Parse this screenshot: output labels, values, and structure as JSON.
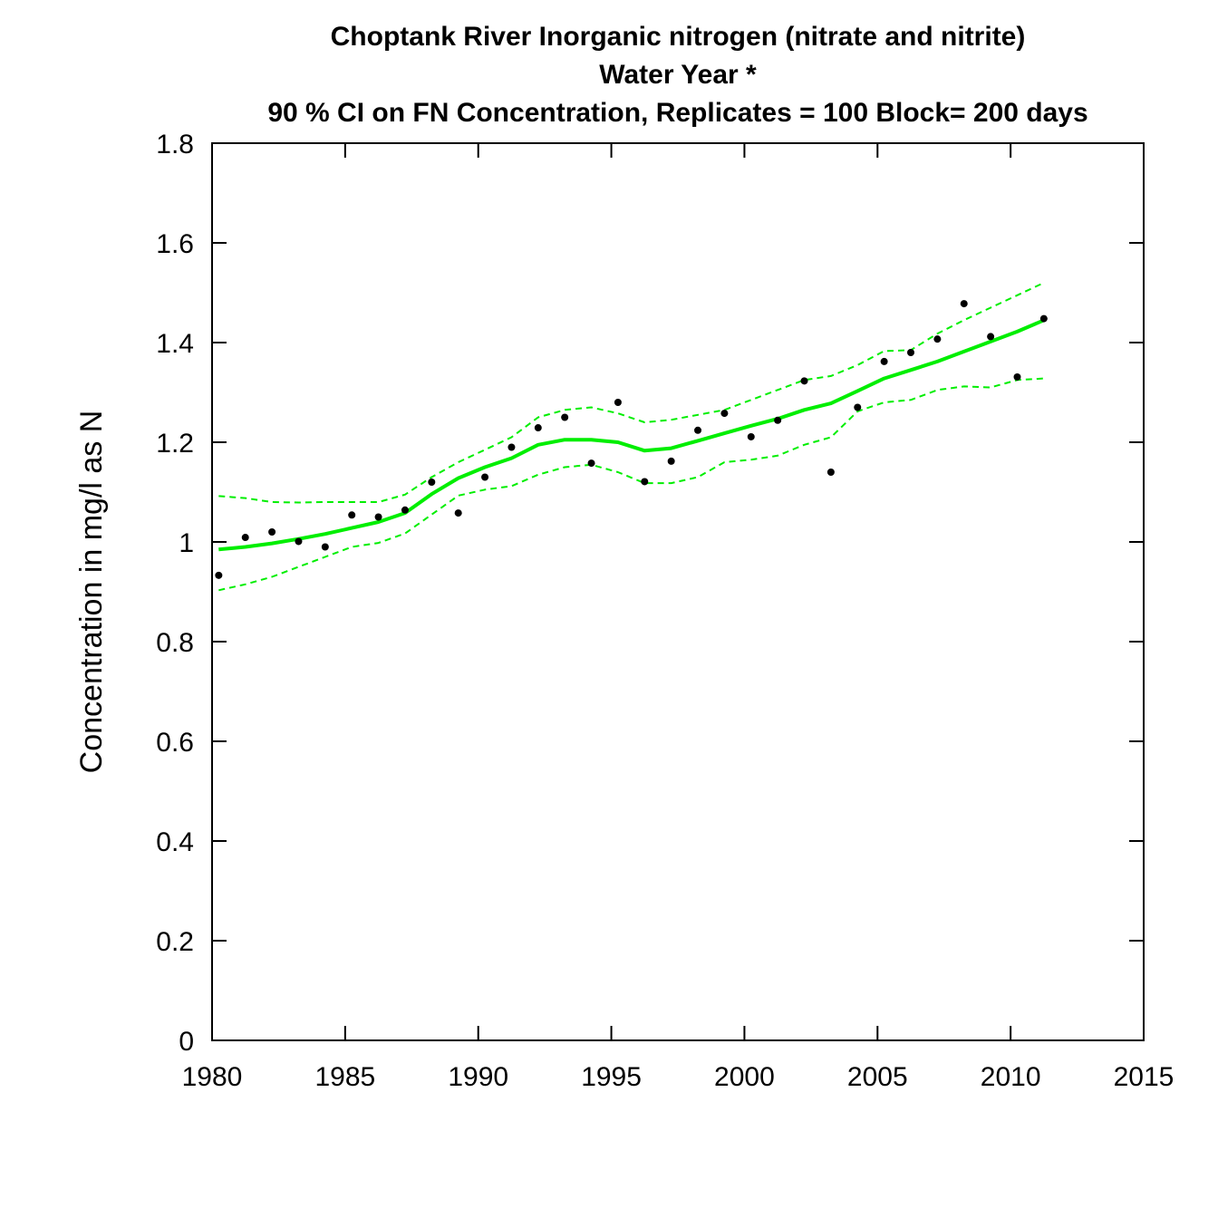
{
  "chart_data": {
    "type": "line",
    "title": [
      "Choptank River   Inorganic nitrogen (nitrate and nitrite)",
      "Water Year *",
      "90 % CI on FN Concentration, Replicates = 100 Block= 200 days"
    ],
    "xlabel": "",
    "ylabel": "Concentration in mg/l as N",
    "xlim": [
      1980,
      2015
    ],
    "ylim": [
      0,
      1.8
    ],
    "xticks": [
      "1980",
      "1985",
      "1990",
      "1995",
      "2000",
      "2005",
      "2010",
      "2015"
    ],
    "yticks": [
      "0",
      "0.2",
      "0.4",
      "0.6",
      "0.8",
      "1",
      "1.2",
      "1.4",
      "1.6",
      "1.8"
    ],
    "grid": false,
    "legend": "none",
    "colors": {
      "estimate": "#00ee00",
      "ci": "#00ee00",
      "points": "#000000"
    },
    "x": [
      1980.25,
      1981.25,
      1982.25,
      1983.25,
      1984.25,
      1985.25,
      1986.25,
      1987.25,
      1988.25,
      1989.25,
      1990.25,
      1991.25,
      1992.25,
      1993.25,
      1994.25,
      1995.25,
      1996.25,
      1997.25,
      1998.25,
      1999.25,
      2000.25,
      2001.25,
      2002.25,
      2003.25,
      2004.25,
      2005.25,
      2006.25,
      2007.25,
      2008.25,
      2009.25,
      2010.25,
      2011.25
    ],
    "series": [
      {
        "role": "observed-annual-concentration",
        "marker": "dot",
        "values": [
          0.933,
          1.009,
          1.02,
          1.001,
          0.99,
          1.054,
          1.05,
          1.064,
          1.12,
          1.058,
          1.13,
          1.19,
          1.229,
          1.25,
          1.158,
          1.28,
          1.121,
          1.162,
          1.224,
          1.258,
          1.211,
          1.244,
          1.323,
          1.14,
          1.27,
          1.362,
          1.38,
          1.407,
          1.478,
          1.412,
          1.331,
          1.448
        ]
      },
      {
        "role": "flow-normalized-concentration",
        "style": "solid",
        "values": [
          0.985,
          0.99,
          0.997,
          1.006,
          1.016,
          1.028,
          1.04,
          1.058,
          1.096,
          1.128,
          1.15,
          1.168,
          1.195,
          1.205,
          1.205,
          1.2,
          1.183,
          1.188,
          1.203,
          1.218,
          1.233,
          1.247,
          1.265,
          1.278,
          1.303,
          1.328,
          1.345,
          1.362,
          1.382,
          1.402,
          1.422,
          1.445
        ]
      },
      {
        "role": "ci-upper-90",
        "style": "dashed",
        "values": [
          1.092,
          1.088,
          1.08,
          1.079,
          1.08,
          1.08,
          1.08,
          1.095,
          1.13,
          1.16,
          1.185,
          1.21,
          1.25,
          1.265,
          1.27,
          1.258,
          1.24,
          1.245,
          1.255,
          1.265,
          1.285,
          1.305,
          1.325,
          1.333,
          1.355,
          1.383,
          1.385,
          1.418,
          1.445,
          1.47,
          1.495,
          1.52
        ]
      },
      {
        "role": "ci-lower-90",
        "style": "dashed",
        "values": [
          0.903,
          0.915,
          0.93,
          0.95,
          0.97,
          0.99,
          0.998,
          1.017,
          1.055,
          1.093,
          1.105,
          1.112,
          1.135,
          1.15,
          1.155,
          1.14,
          1.118,
          1.118,
          1.13,
          1.16,
          1.165,
          1.173,
          1.195,
          1.21,
          1.262,
          1.28,
          1.285,
          1.305,
          1.312,
          1.31,
          1.325,
          1.328
        ]
      }
    ]
  }
}
